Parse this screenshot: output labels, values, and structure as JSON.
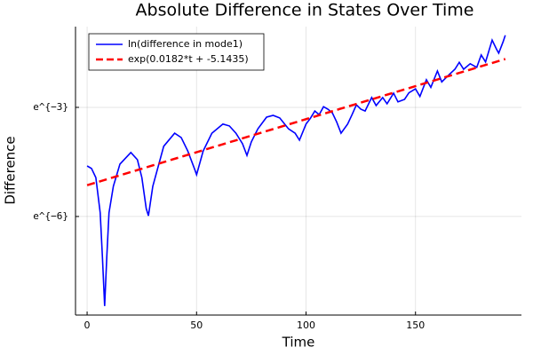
{
  "chart_data": {
    "type": "line",
    "title": "Absolute Difference in States Over Time",
    "x_label": "Time",
    "y_label": "Difference",
    "xlim": [
      -5.3,
      198.4
    ],
    "ylim": [
      -8.71,
      -0.78
    ],
    "xticks": [
      0,
      50,
      100,
      150
    ],
    "yticks": [
      {
        "value": -3,
        "label": "e^{−3}"
      },
      {
        "value": -6,
        "label": "e^{−6}"
      }
    ],
    "grid": true,
    "legend_position": "top-left",
    "series": [
      {
        "name": "ln(difference in mode1)",
        "color": "#0000ff",
        "dash": "solid",
        "x": [
          0,
          2,
          4,
          6,
          7,
          8,
          9,
          10,
          12,
          15,
          20,
          23,
          25,
          27,
          28,
          30,
          35,
          40,
          43,
          46,
          49,
          50,
          53,
          57,
          62,
          65,
          68,
          71,
          73,
          75,
          78,
          82,
          85,
          88,
          92,
          95,
          97,
          100,
          102,
          104,
          106,
          108,
          110,
          112,
          114,
          116,
          119,
          121,
          123,
          125,
          127,
          130,
          132,
          135,
          137,
          140,
          142,
          145,
          147,
          150,
          152,
          155,
          157,
          160,
          162,
          165,
          168,
          170,
          172,
          175,
          178,
          180,
          182,
          185,
          187,
          188,
          190,
          191
        ],
        "values": [
          -4.61,
          -4.68,
          -4.93,
          -5.9,
          -7.12,
          -8.46,
          -7.12,
          -5.9,
          -5.17,
          -4.56,
          -4.24,
          -4.44,
          -4.93,
          -5.78,
          -5.98,
          -5.17,
          -4.07,
          -3.71,
          -3.83,
          -4.2,
          -4.68,
          -4.85,
          -4.2,
          -3.71,
          -3.46,
          -3.51,
          -3.71,
          -4.0,
          -4.32,
          -3.95,
          -3.59,
          -3.27,
          -3.22,
          -3.29,
          -3.59,
          -3.71,
          -3.9,
          -3.46,
          -3.3,
          -3.1,
          -3.2,
          -2.98,
          -3.05,
          -3.15,
          -3.4,
          -3.71,
          -3.46,
          -3.2,
          -2.93,
          -3.05,
          -3.1,
          -2.73,
          -2.95,
          -2.73,
          -2.9,
          -2.61,
          -2.85,
          -2.78,
          -2.6,
          -2.49,
          -2.7,
          -2.24,
          -2.45,
          -2.0,
          -2.3,
          -2.12,
          -1.95,
          -1.76,
          -1.95,
          -1.8,
          -1.9,
          -1.56,
          -1.75,
          -1.15,
          -1.4,
          -1.51,
          -1.2,
          -1.02
        ]
      },
      {
        "name": "exp(0.0182*t + -5.1435)",
        "color": "#ff0000",
        "dash": "dashed",
        "x": [
          0,
          191
        ],
        "values": [
          -5.14,
          -1.67
        ]
      }
    ]
  }
}
